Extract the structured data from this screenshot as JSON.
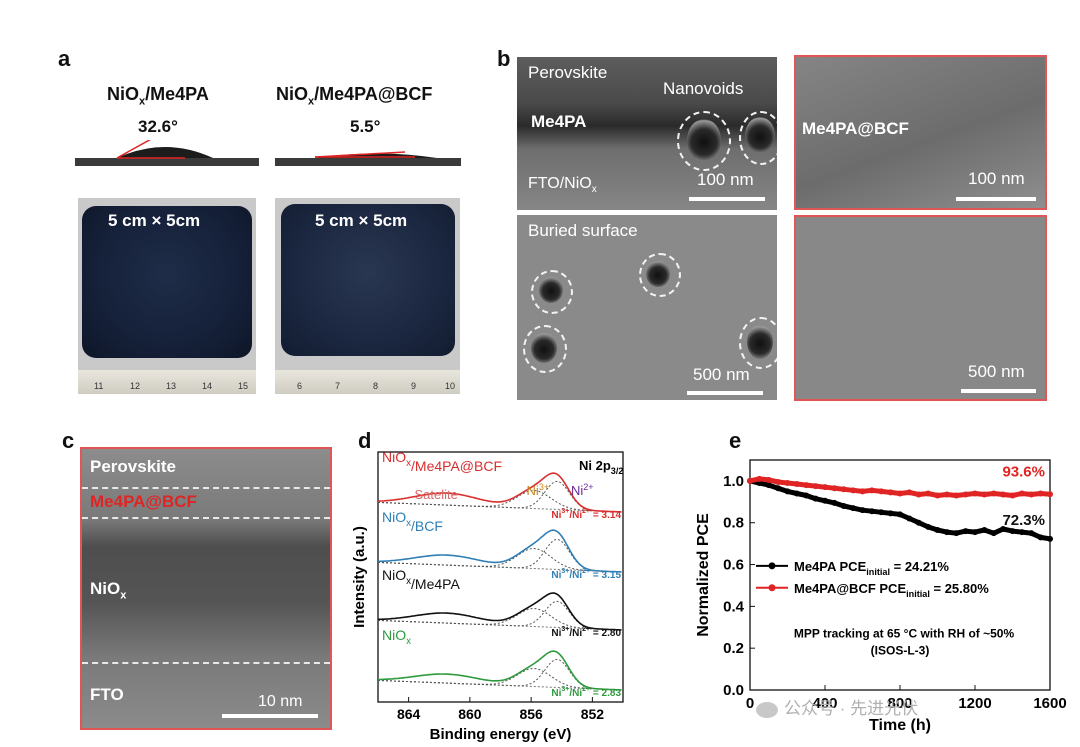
{
  "panel_a": {
    "label": "a",
    "left": {
      "title_base": "NiO",
      "title_sub": "x",
      "title_rest": "/Me4PA",
      "angle": "32.6°",
      "size": "5 cm × 5cm",
      "ruler": [
        "11",
        "12",
        "13",
        "14",
        "15"
      ]
    },
    "right": {
      "title_base": "NiO",
      "title_sub": "x",
      "title_rest": "/Me4PA@BCF",
      "angle": "5.5°",
      "size": "5 cm × 5cm",
      "ruler": [
        "6",
        "7",
        "8",
        "9",
        "10"
      ]
    }
  },
  "panel_b": {
    "label": "b",
    "tl": {
      "perovskite": "Perovskite",
      "nanovoids": "Nanovoids",
      "layer": "Me4PA",
      "fto_base": "FTO/NiO",
      "fto_sub": "x",
      "scale": "100 nm"
    },
    "tr": {
      "layer": "Me4PA@BCF",
      "scale": "100 nm"
    },
    "bl": {
      "title": "Buried surface",
      "scale": "500 nm"
    },
    "br": {
      "scale": "500 nm"
    }
  },
  "panel_c": {
    "label": "c",
    "perovskite": "Perovskite",
    "me4pa": "Me4PA@BCF",
    "niox_base": "NiO",
    "niox_sub": "x",
    "fto": "FTO",
    "scale": "10 nm"
  },
  "chart_data": [
    {
      "panel": "d",
      "type": "line",
      "title": "Ni 2p3/2",
      "xlabel": "Binding energy (eV)",
      "ylabel": "Intensity (a.u.)",
      "xlim": [
        866,
        850
      ],
      "xticks": [
        "864",
        "860",
        "856",
        "852"
      ],
      "annotations": {
        "satelite": "Satelite",
        "ni3": "Ni3+",
        "ni2": "Ni2+"
      },
      "series": [
        {
          "name": "NiOx/Me4PA@BCF",
          "base": "NiO",
          "sub": "x",
          "rest": "/Me4PA@BCF",
          "color": "#d92e2e",
          "ratio": "Ni3+/Ni2+ = 3.14",
          "ratio_value": 3.14
        },
        {
          "name": "NiOx/BCF",
          "base": "NiO",
          "sub": "x",
          "rest": "/BCF",
          "color": "#2f7fb5",
          "ratio": "Ni3+/Ni2+ = 3.15",
          "ratio_value": 3.15
        },
        {
          "name": "NiOx/Me4PA",
          "base": "NiO",
          "sub": "x",
          "rest": "/Me4PA",
          "color": "#111111",
          "ratio": "Ni3+/Ni2+ = 2.80",
          "ratio_value": 2.8
        },
        {
          "name": "NiOx",
          "base": "NiO",
          "sub": "x",
          "rest": "",
          "color": "#2e9a3e",
          "ratio": "Ni3+/Ni2+ = 2.83",
          "ratio_value": 2.83
        }
      ]
    },
    {
      "panel": "e",
      "type": "line",
      "xlabel": "Time (h)",
      "ylabel": "Normalized PCE",
      "xlim": [
        0,
        1600
      ],
      "ylim": [
        0.0,
        1.1
      ],
      "xticks": [
        0,
        400,
        800,
        1200,
        1600
      ],
      "yticks": [
        "0.0",
        "0.2",
        "0.4",
        "0.6",
        "0.8",
        "1.0"
      ],
      "x": [
        0,
        50,
        100,
        150,
        200,
        250,
        300,
        350,
        400,
        450,
        500,
        550,
        600,
        650,
        700,
        750,
        800,
        850,
        900,
        950,
        1000,
        1050,
        1100,
        1150,
        1200,
        1250,
        1300,
        1350,
        1400,
        1450,
        1500,
        1550,
        1600
      ],
      "series": [
        {
          "name": "Me4PA",
          "legend": "Me4PA  PCE",
          "sub": "initial",
          "value_text": " = 24.21%",
          "color": "#000000",
          "values": [
            1.0,
            0.99,
            0.98,
            0.965,
            0.95,
            0.94,
            0.93,
            0.915,
            0.905,
            0.895,
            0.88,
            0.87,
            0.86,
            0.855,
            0.85,
            0.845,
            0.84,
            0.82,
            0.8,
            0.78,
            0.765,
            0.755,
            0.75,
            0.76,
            0.755,
            0.765,
            0.75,
            0.77,
            0.76,
            0.755,
            0.75,
            0.73,
            0.723
          ]
        },
        {
          "name": "Me4PA@BCF",
          "legend": "Me4PA@BCF PCE",
          "sub": "initial",
          "value_text": " = 25.80%",
          "color": "#e02424",
          "values": [
            1.0,
            1.01,
            1.005,
            0.995,
            0.99,
            0.985,
            0.98,
            0.975,
            0.97,
            0.965,
            0.96,
            0.955,
            0.95,
            0.955,
            0.95,
            0.945,
            0.94,
            0.945,
            0.935,
            0.94,
            0.93,
            0.935,
            0.93,
            0.935,
            0.94,
            0.935,
            0.94,
            0.935,
            0.93,
            0.94,
            0.935,
            0.94,
            0.936
          ]
        }
      ],
      "end_labels": [
        "93.6%",
        "72.3%"
      ],
      "note_line1": "MPP tracking at 65 °C with RH of ~50%",
      "note_line2": "(ISOS-L-3)"
    }
  ],
  "watermark": {
    "wechat": "公众号 · 先进光伏"
  }
}
